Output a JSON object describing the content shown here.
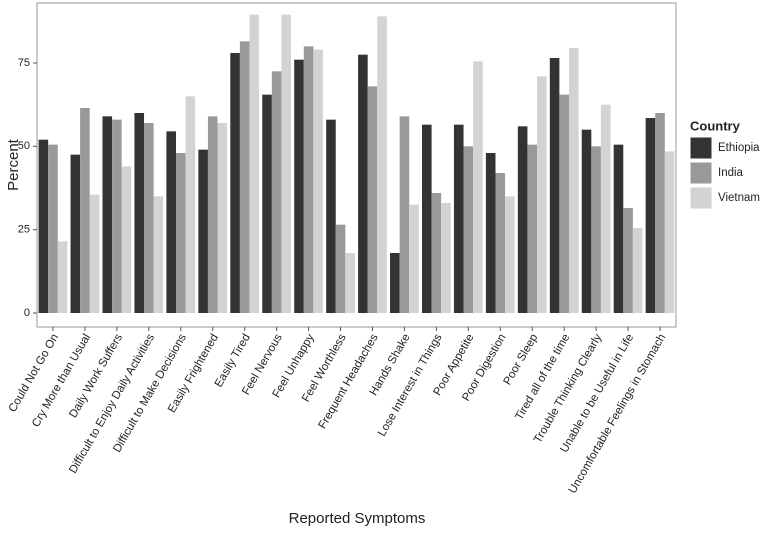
{
  "chart_data": {
    "type": "bar",
    "x_label": "Reported Symptoms",
    "y_label": "Percent",
    "legend_title": "Country",
    "legend_position": "right",
    "categories": [
      "Could Not Go On",
      "Cry More than Usual",
      "Daily Work Suffers",
      "Difficult to Enjoy Daily Activities",
      "Difficult to Make Decisions",
      "Easily Frightened",
      "Easily Tired",
      "Feel Nervous",
      "Feel Unhappy",
      "Feel Worthless",
      "Frequent Headaches",
      "Hands Shake",
      "Lose Interest in Things",
      "Poor Appetite",
      "Poor Digestion",
      "Poor Sleep",
      "Tired all of the time",
      "Trouble Thinking Clearly",
      "Unable to be Useful in Life",
      "Uncomfortable Feelings in Stomach"
    ],
    "series": [
      {
        "name": "Ethiopia",
        "color": "#333333",
        "values": [
          52,
          47.5,
          59,
          60,
          54.5,
          49,
          78,
          65.5,
          76,
          58,
          77.5,
          18,
          56.5,
          56.5,
          48,
          56,
          76.5,
          55,
          50.5,
          58.5
        ]
      },
      {
        "name": "India",
        "color": "#999999",
        "values": [
          50.5,
          61.5,
          58,
          57,
          48,
          59,
          81.5,
          72.5,
          80,
          26.5,
          68,
          59,
          36,
          50,
          42,
          50.5,
          65.5,
          50,
          31.5,
          60
        ]
      },
      {
        "name": "Vietnam",
        "color": "#d3d3d3",
        "values": [
          21.5,
          35.5,
          44,
          35,
          65,
          57,
          89.5,
          89.5,
          79,
          18,
          89,
          32.5,
          33,
          75.5,
          35,
          71,
          79.5,
          62.5,
          25.5,
          48.5
        ]
      }
    ],
    "ylim": [
      -4.2,
      93
    ],
    "yticks": [
      0,
      25,
      50,
      75
    ],
    "grid": false
  }
}
